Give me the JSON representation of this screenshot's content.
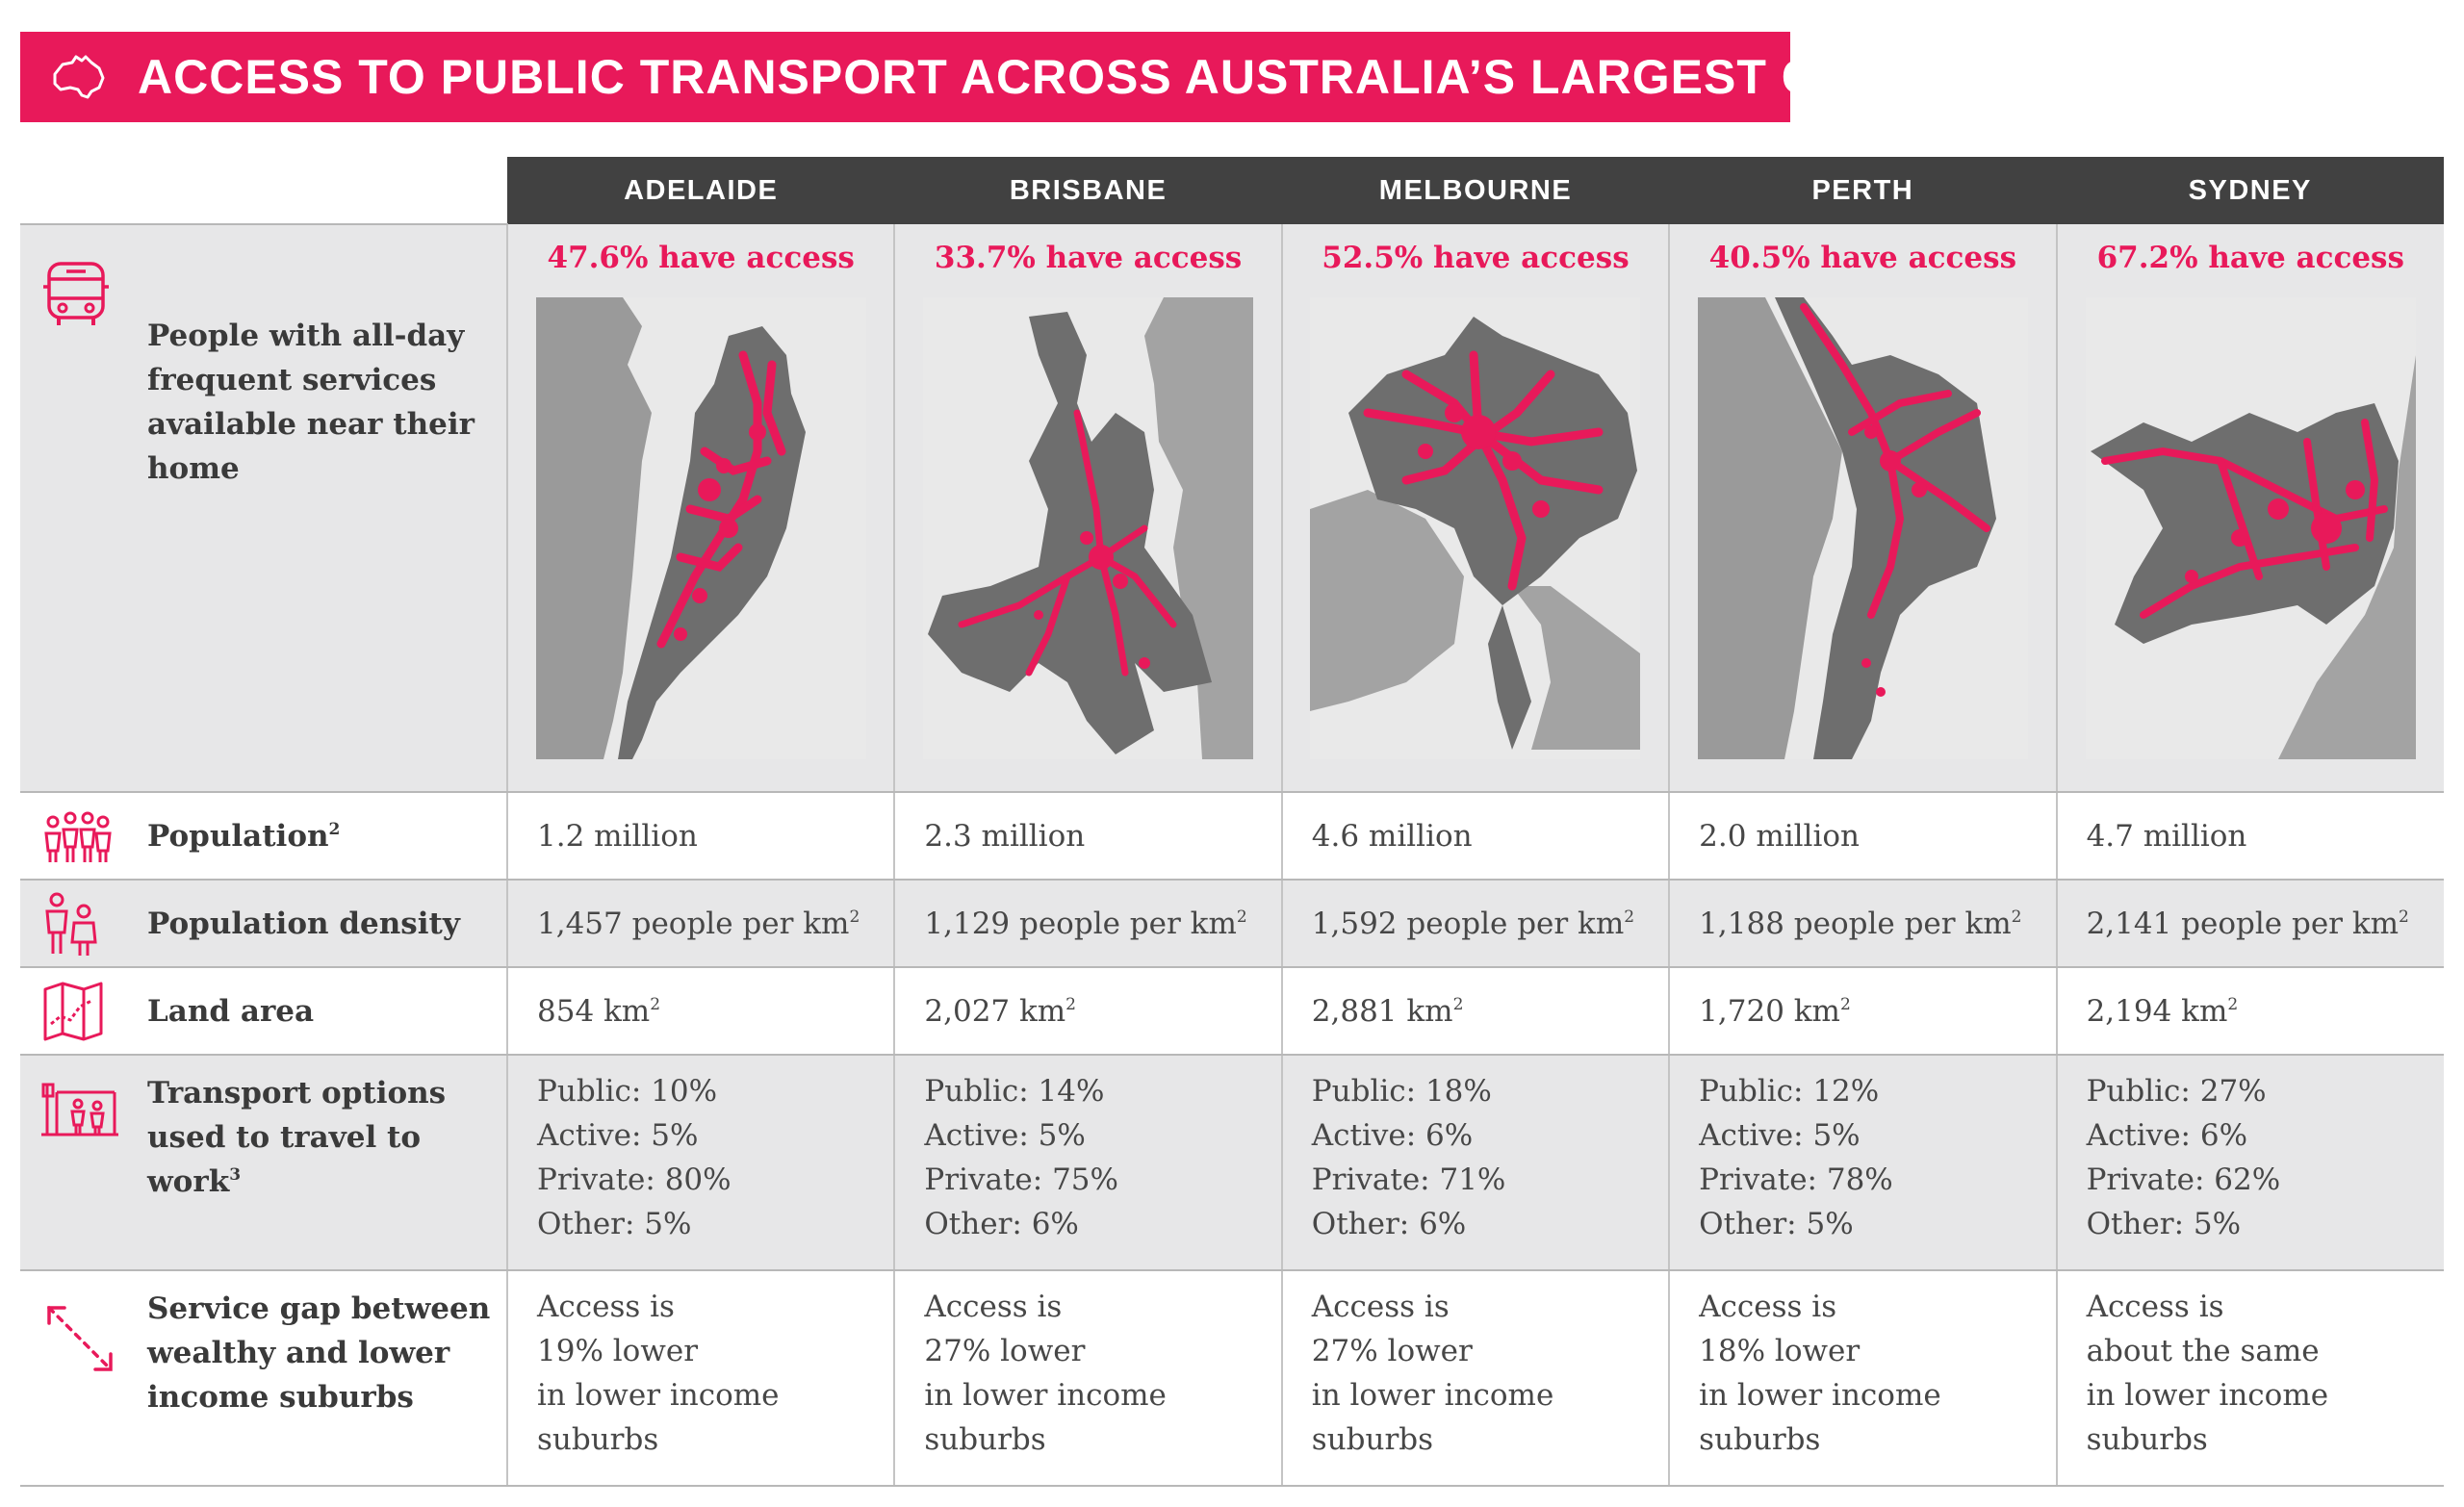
{
  "title": "ACCESS TO PUBLIC TRANSPORT ACROSS AUSTRALIA’S LARGEST CITIES",
  "colors": {
    "accent": "#e8195a",
    "header": "#414141",
    "band": "#e7e7e8"
  },
  "cities": [
    "ADELAIDE",
    "BRISBANE",
    "MELBOURNE",
    "PERTH",
    "SYDNEY"
  ],
  "rows": {
    "access": {
      "label": "People with all-day frequent services available near their home",
      "icon": "bus-icon",
      "values": [
        "47.6% have access",
        "33.7% have access",
        "52.5% have access",
        "40.5% have access",
        "67.2% have access"
      ]
    },
    "population": {
      "label": "Population",
      "footnote": "2",
      "icon": "people-group-icon",
      "values": [
        "1.2 million",
        "2.3 million",
        "4.6 million",
        "2.0 million",
        "4.7 million"
      ]
    },
    "density": {
      "label": "Population density",
      "icon": "two-people-icon",
      "values": [
        "1,457 people per km",
        "1,129 people per km",
        "1,592 people per km",
        "1,188 people per km",
        "2,141 people per km"
      ],
      "unit_sup": "2"
    },
    "land": {
      "label": "Land area",
      "icon": "folded-map-icon",
      "values": [
        "854 km",
        "2,027 km",
        "2,881 km",
        "1,720 km",
        "2,194 km"
      ],
      "unit_sup": "2"
    },
    "transport": {
      "label": "Transport options used to travel to work",
      "footnote": "3",
      "icon": "bus-stop-icon",
      "values": [
        "Public: 10%\nActive: 5%\nPrivate: 80%\nOther: 5%",
        "Public: 14%\nActive: 5%\nPrivate: 75%\nOther: 6%",
        "Public: 18%\nActive: 6%\nPrivate: 71%\nOther: 6%",
        "Public: 12%\nActive: 5%\nPrivate: 78%\nOther: 5%",
        "Public: 27%\nActive: 6%\nPrivate: 62%\nOther: 5%"
      ]
    },
    "gap": {
      "label": "Service gap between wealthy and lower income suburbs",
      "icon": "dashed-arrow-icon",
      "values": [
        "Access is\n19% lower\nin lower income\nsuburbs",
        "Access is\n27% lower\nin lower income\nsuburbs",
        "Access is\n27% lower\nin lower income\nsuburbs",
        "Access is\n18% lower\nin lower income\nsuburbs",
        "Access is\nabout the same\nin lower income\nsuburbs"
      ]
    }
  }
}
